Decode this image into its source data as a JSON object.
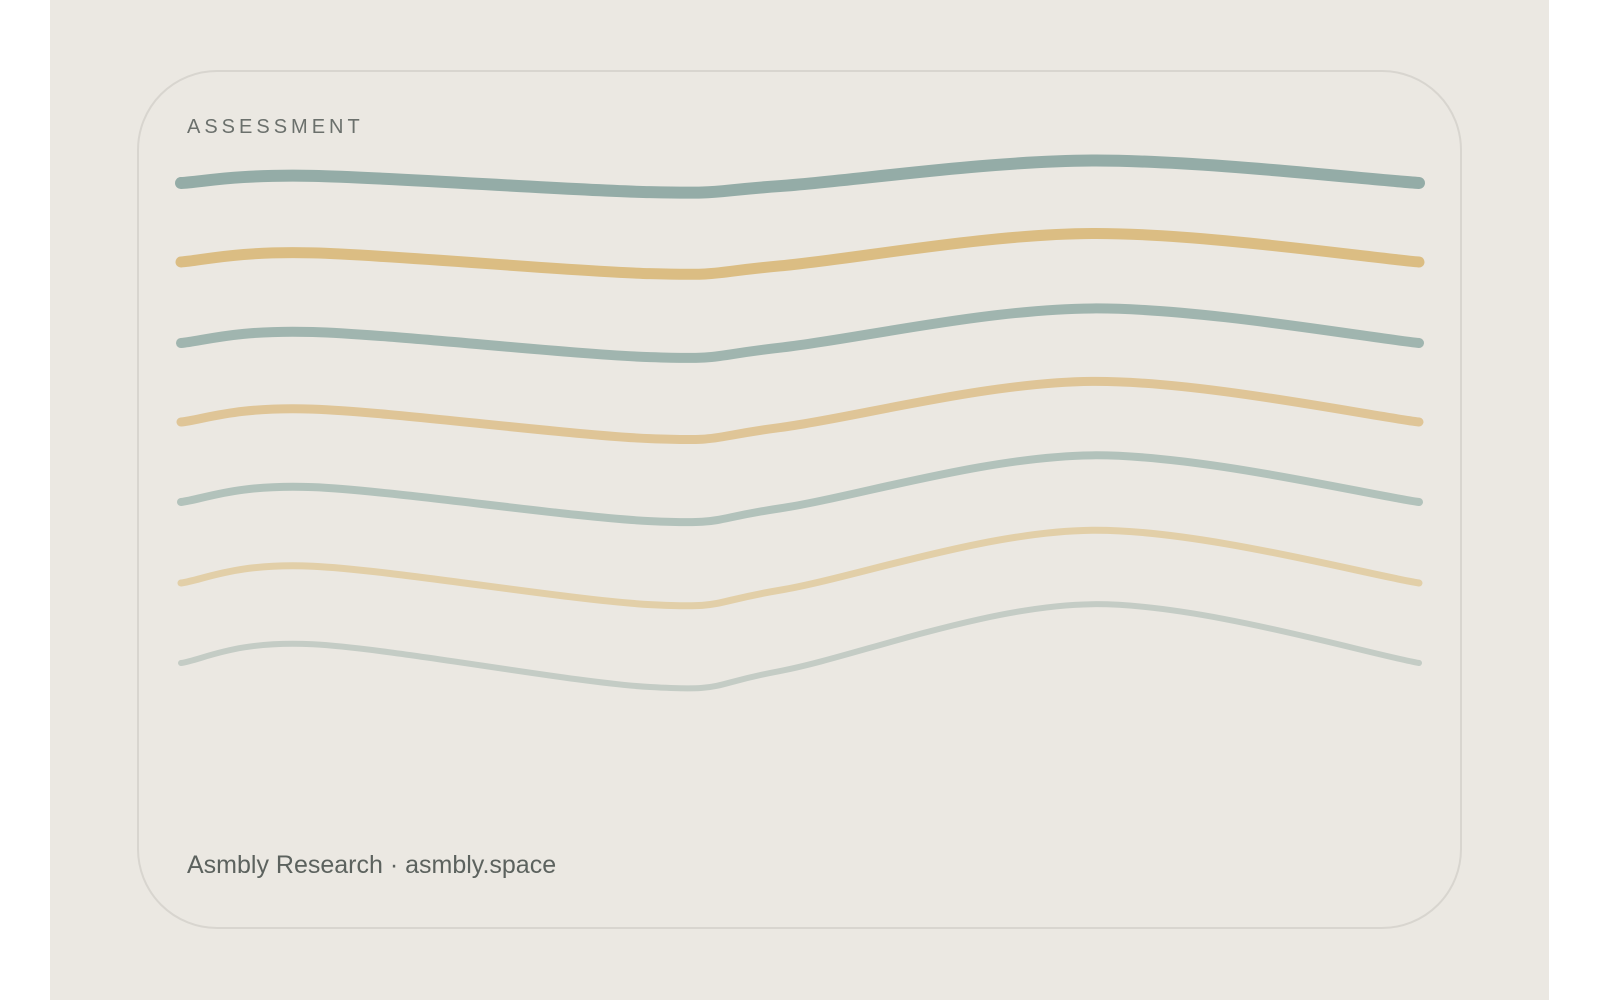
{
  "header": {
    "label": "ASSESSMENT"
  },
  "footer": {
    "text": "Asmbly Research · asmbly.space"
  }
}
